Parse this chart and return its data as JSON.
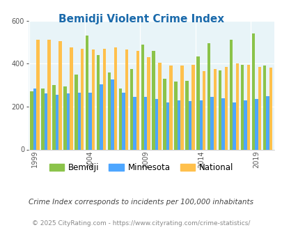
{
  "title": "Bemidji Violent Crime Index",
  "years": [
    1999,
    2000,
    2001,
    2002,
    2003,
    2004,
    2005,
    2006,
    2007,
    2008,
    2009,
    2010,
    2011,
    2012,
    2013,
    2014,
    2015,
    2016,
    2017,
    2018,
    2019,
    2020
  ],
  "bemidji": [
    270,
    285,
    300,
    295,
    350,
    530,
    440,
    360,
    285,
    375,
    490,
    460,
    330,
    315,
    320,
    435,
    495,
    370,
    510,
    395,
    540,
    390
  ],
  "minnesota": [
    285,
    260,
    255,
    260,
    265,
    265,
    305,
    325,
    265,
    245,
    245,
    235,
    220,
    230,
    225,
    230,
    245,
    240,
    220,
    230,
    235,
    250
  ],
  "national": [
    510,
    510,
    505,
    475,
    470,
    465,
    470,
    475,
    465,
    460,
    430,
    405,
    390,
    390,
    395,
    365,
    375,
    385,
    400,
    395,
    385,
    380
  ],
  "colors": {
    "bemidji": "#8bc34a",
    "minnesota": "#4da6ff",
    "national": "#ffc04c"
  },
  "bg_color": "#e8f4f8",
  "ylim": [
    0,
    600
  ],
  "yticks": [
    0,
    200,
    400,
    600
  ],
  "xlabel_years": [
    1999,
    2004,
    2009,
    2014,
    2019
  ],
  "legend_labels": [
    "Bemidji",
    "Minnesota",
    "National"
  ],
  "footnote1": "Crime Index corresponds to incidents per 100,000 inhabitants",
  "footnote2": "© 2025 CityRating.com - https://www.cityrating.com/crime-statistics/",
  "title_color": "#1a6aab",
  "footnote1_color": "#444444",
  "footnote2_color": "#888888"
}
